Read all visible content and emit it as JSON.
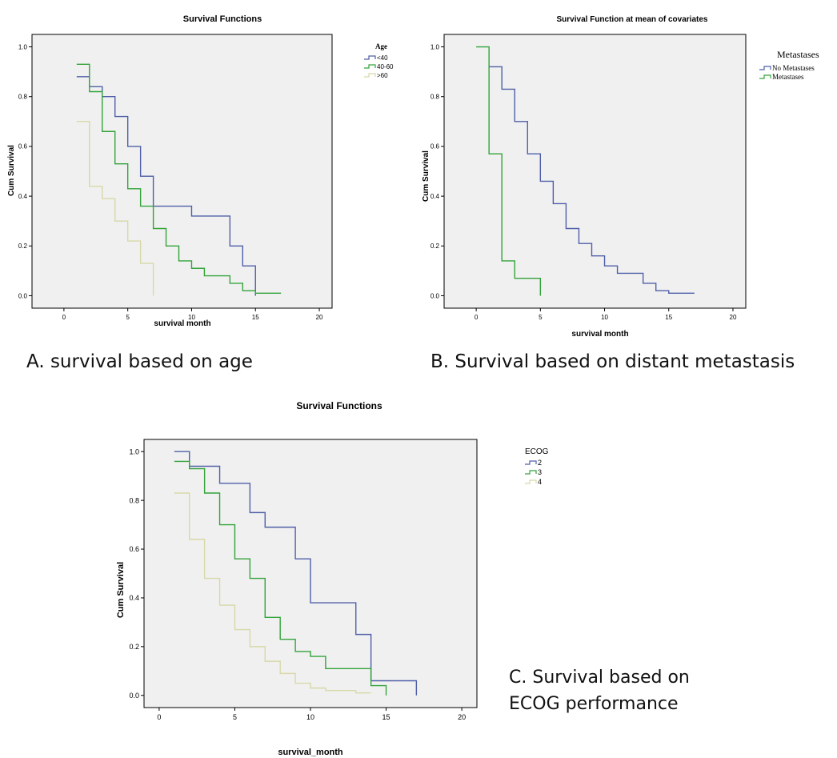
{
  "captions": {
    "a": "A. survival based on age",
    "b": "B. Survival based on distant metastasis",
    "c_line1": "C. Survival based on",
    "c_line2": "ECOG performance"
  },
  "chart_data": [
    {
      "type": "line",
      "step": true,
      "title": "Survival Functions",
      "xlabel": "survival month",
      "ylabel": "Cum Survival",
      "xlim": [
        -2.5,
        21
      ],
      "ylim": [
        -0.05,
        1.05
      ],
      "xticks": [
        "0",
        "5",
        "10",
        "15",
        "20"
      ],
      "yticks": [
        "0.0",
        "0.2",
        "0.4",
        "0.6",
        "0.8",
        "1.0"
      ],
      "legend_title": "Age",
      "legend_position": "outside-right",
      "plot_background": "#f0f0f0",
      "series": [
        {
          "name": "<40",
          "color": "#4f5fa8",
          "x": [
            1,
            2,
            3,
            4,
            5,
            6,
            7,
            9,
            10,
            13,
            14,
            15
          ],
          "y": [
            0.88,
            0.84,
            0.8,
            0.72,
            0.6,
            0.48,
            0.36,
            0.36,
            0.32,
            0.2,
            0.12,
            0.08
          ],
          "end": [
            15,
            0.0
          ]
        },
        {
          "name": "40-60",
          "color": "#33a33a",
          "x": [
            1,
            2,
            3,
            4,
            5,
            6,
            7,
            8,
            9,
            10,
            11,
            13,
            14,
            15,
            16
          ],
          "y": [
            0.93,
            0.82,
            0.66,
            0.53,
            0.43,
            0.36,
            0.27,
            0.2,
            0.14,
            0.11,
            0.08,
            0.05,
            0.02,
            0.01,
            0.01
          ],
          "end": [
            17,
            0.01
          ]
        },
        {
          "name": ">60",
          "color": "#d8d8a8",
          "x": [
            1,
            2,
            3,
            4,
            5,
            6
          ],
          "y": [
            0.7,
            0.44,
            0.39,
            0.3,
            0.22,
            0.13
          ],
          "end": [
            7,
            0.0
          ]
        }
      ]
    },
    {
      "type": "line",
      "step": true,
      "title": "Survival Function at mean of covariates",
      "xlabel": "survival month",
      "ylabel": "Cum Survival",
      "xlim": [
        -2.5,
        21
      ],
      "ylim": [
        -0.05,
        1.05
      ],
      "xticks": [
        "0",
        "5",
        "10",
        "15",
        "20"
      ],
      "yticks": [
        "0.0",
        "0.2",
        "0.4",
        "0.6",
        "0.8",
        "1.0"
      ],
      "legend_title": "Metastases",
      "legend_position": "outside-right",
      "plot_background": "#f0f0f0",
      "series": [
        {
          "name": "No Metastases",
          "color": "#4f5fa8",
          "x": [
            1,
            2,
            3,
            4,
            5,
            6,
            7,
            8,
            9,
            10,
            11,
            13,
            14,
            15
          ],
          "y": [
            0.92,
            0.83,
            0.7,
            0.57,
            0.46,
            0.37,
            0.27,
            0.21,
            0.16,
            0.12,
            0.09,
            0.05,
            0.02,
            0.01
          ],
          "end": [
            17,
            0.01
          ]
        },
        {
          "name": "Metastases",
          "color": "#33a33a",
          "x": [
            0,
            1,
            2,
            3
          ],
          "y": [
            1.0,
            0.57,
            0.14,
            0.07
          ],
          "end": [
            5,
            0.0
          ]
        }
      ]
    },
    {
      "type": "line",
      "step": true,
      "title": "Survival Functions",
      "xlabel": "survival_month",
      "ylabel": "Cum Survival",
      "xlim": [
        -1.0,
        21
      ],
      "ylim": [
        -0.05,
        1.05
      ],
      "xticks": [
        "0",
        "5",
        "10",
        "15",
        "20"
      ],
      "yticks": [
        "0.0",
        "0.2",
        "0.4",
        "0.6",
        "0.8",
        "1.0"
      ],
      "legend_title": "ECOG",
      "legend_position": "outside-right",
      "plot_background": "#f0f0f0",
      "series": [
        {
          "name": "2",
          "color": "#4f5fa8",
          "x": [
            1,
            2,
            4,
            6,
            7,
            9,
            10,
            13,
            14
          ],
          "y": [
            1.0,
            0.94,
            0.87,
            0.75,
            0.69,
            0.56,
            0.38,
            0.25,
            0.06
          ],
          "end": [
            17,
            0.0
          ]
        },
        {
          "name": "3",
          "color": "#33a33a",
          "x": [
            1,
            2,
            3,
            4,
            5,
            6,
            7,
            8,
            9,
            10,
            11,
            14
          ],
          "y": [
            0.96,
            0.93,
            0.83,
            0.7,
            0.56,
            0.48,
            0.32,
            0.23,
            0.18,
            0.16,
            0.11,
            0.04
          ],
          "end": [
            15,
            0.0
          ]
        },
        {
          "name": "4",
          "color": "#d8d8a8",
          "x": [
            1,
            2,
            3,
            4,
            5,
            6,
            7,
            8,
            9,
            10,
            11,
            13
          ],
          "y": [
            0.83,
            0.64,
            0.48,
            0.37,
            0.27,
            0.2,
            0.14,
            0.09,
            0.05,
            0.03,
            0.02,
            0.01
          ],
          "end": [
            14,
            0.01
          ]
        }
      ]
    }
  ]
}
